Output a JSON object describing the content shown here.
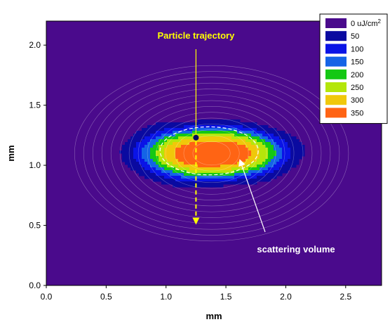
{
  "chart_data": {
    "type": "heatmap",
    "xlabel": "mm",
    "ylabel": "mm",
    "xlim": [
      0,
      2.8
    ],
    "ylim": [
      0,
      2.2
    ],
    "xticks": [
      "0.0",
      "0.5",
      "1.0",
      "1.5",
      "2.0",
      "2.5"
    ],
    "yticks": [
      "0.0",
      "0.5",
      "1.0",
      "1.5",
      "2.0"
    ],
    "xtick_values": [
      0,
      0.5,
      1.0,
      1.5,
      2.0,
      2.5
    ],
    "ytick_values": [
      0,
      0.5,
      1.0,
      1.5,
      2.0
    ],
    "grid": false,
    "legend_position": "top-right",
    "levels": [
      {
        "label": "0 uJ/cm",
        "sup": "2",
        "value": 0,
        "color": "#4a0a8c"
      },
      {
        "label": "50",
        "value": 50,
        "color": "#0a0aa0"
      },
      {
        "label": "100",
        "value": 100,
        "color": "#0a14e6"
      },
      {
        "label": "150",
        "value": 150,
        "color": "#1464e6"
      },
      {
        "label": "200",
        "value": 200,
        "color": "#14c814"
      },
      {
        "label": "250",
        "value": 250,
        "color": "#b4e60a"
      },
      {
        "label": "300",
        "value": 300,
        "color": "#f0c80a"
      },
      {
        "label": "350",
        "value": 350,
        "color": "#ff6414"
      }
    ],
    "beam": {
      "center": [
        1.38,
        1.1
      ],
      "sx": 0.56,
      "sy": 0.2,
      "peak": 395,
      "background": 25
    },
    "annotations": {
      "trajectory_label": "Particle trajectory",
      "trajectory_x": 1.25,
      "particle": [
        1.25,
        1.23
      ],
      "trajectory_end_y": 0.5,
      "scattering_label": "scattering volume",
      "ellipse_center": [
        1.36,
        1.12
      ],
      "ellipse_rx": 0.41,
      "ellipse_ry": 0.2,
      "scatter_arrow_tip": [
        1.6,
        1.06
      ]
    },
    "colors": {
      "trajectory": "#ffff00",
      "particle": "#0a0a60",
      "ellipse": "#ffffff",
      "contour": "rgba(255,255,255,0.35)"
    }
  }
}
